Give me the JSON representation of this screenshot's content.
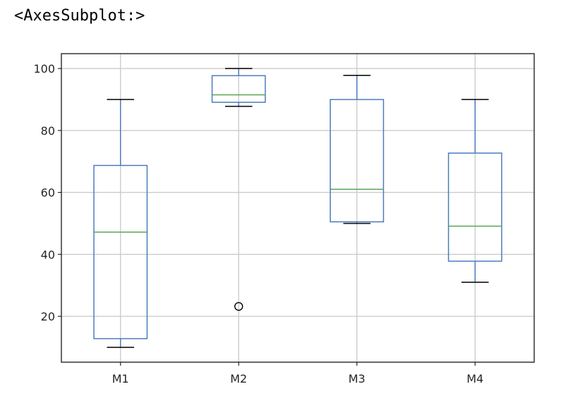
{
  "output_repr": "<AxesSubplot:>",
  "chart_data": {
    "type": "box",
    "categories": [
      "M1",
      "M2",
      "M3",
      "M4"
    ],
    "boxes": [
      {
        "name": "M1",
        "whisker_low": 10,
        "q1": 12.8,
        "median": 47.2,
        "q3": 68.7,
        "whisker_high": 90,
        "outliers": []
      },
      {
        "name": "M2",
        "whisker_low": 87.8,
        "q1": 89.1,
        "median": 91.5,
        "q3": 97.7,
        "whisker_high": 100,
        "outliers": [
          23.2
        ]
      },
      {
        "name": "M3",
        "whisker_low": 50,
        "q1": 50.5,
        "median": 61,
        "q3": 90,
        "whisker_high": 97.8,
        "outliers": []
      },
      {
        "name": "M4",
        "whisker_low": 31,
        "q1": 37.8,
        "median": 49.1,
        "q3": 72.7,
        "whisker_high": 90,
        "outliers": []
      }
    ],
    "yticks": [
      20,
      40,
      60,
      80,
      100
    ],
    "ylim": [
      5.2,
      104.8
    ],
    "grid": true,
    "title": "",
    "xlabel": "",
    "ylabel": "",
    "colors": {
      "box": "#4c7bbf",
      "median": "#5aa653",
      "whisker_cap": "#000000",
      "outlier": "#000000",
      "grid": "#cccccc",
      "frame": "#262626"
    }
  }
}
